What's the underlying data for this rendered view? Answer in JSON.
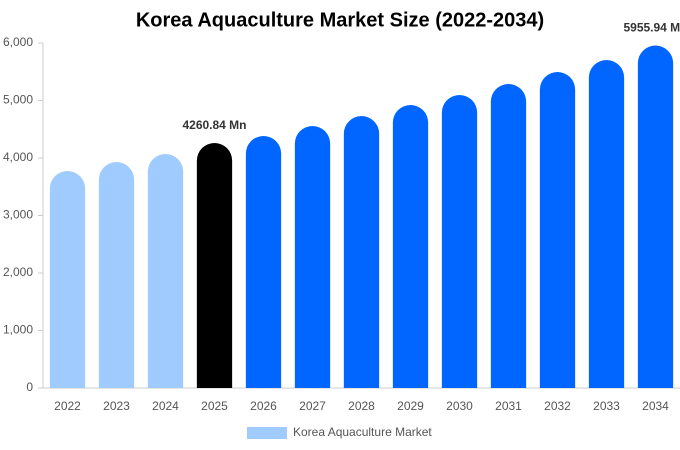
{
  "chart_data": {
    "type": "bar",
    "title": "Korea Aquaculture Market Size (2022-2034)",
    "categories": [
      "2022",
      "2023",
      "2024",
      "2025",
      "2026",
      "2027",
      "2028",
      "2029",
      "2030",
      "2031",
      "2032",
      "2033",
      "2034"
    ],
    "series": [
      {
        "name": "Korea Aquaculture Market",
        "color": "#a0cbff",
        "colors": [
          "#a0cbff",
          "#a0cbff",
          "#a0cbff",
          "#000000",
          "#0066ff",
          "#0066ff",
          "#0066ff",
          "#0066ff",
          "#0066ff",
          "#0066ff",
          "#0066ff",
          "#0066ff",
          "#0066ff"
        ],
        "values": [
          3774,
          3930,
          4070,
          4260.84,
          4383,
          4557,
          4730,
          4922,
          5096,
          5287,
          5496,
          5704,
          5955.94
        ],
        "value_labels": [
          null,
          null,
          null,
          "4260.84 Mn",
          null,
          null,
          null,
          null,
          null,
          null,
          null,
          null,
          "5955.94 Mn"
        ]
      }
    ],
    "ylim": [
      0,
      6000
    ],
    "yticks": [
      0,
      {
        "value": 1000,
        "label": "1,000"
      },
      {
        "value": 2000,
        "label": "2,000"
      },
      {
        "value": 3000,
        "label": "3,000"
      },
      {
        "value": 4000,
        "label": "4,000"
      },
      {
        "value": 5000,
        "label": "5,000"
      },
      {
        "value": 6000,
        "label": "6,000"
      }
    ],
    "grid": false
  }
}
